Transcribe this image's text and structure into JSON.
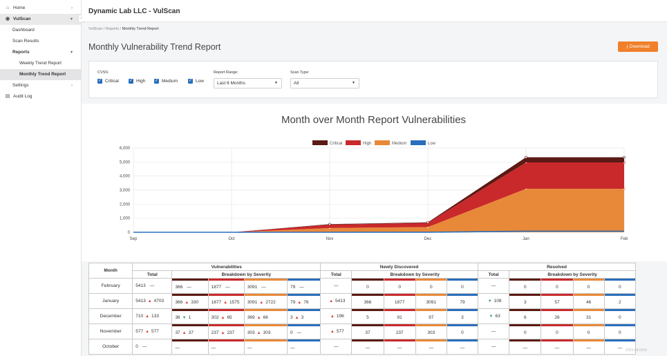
{
  "sidebar": {
    "items": [
      {
        "label": "Home"
      },
      {
        "label": "VulScan"
      },
      {
        "label": "Dashboard"
      },
      {
        "label": "Scan Results"
      },
      {
        "label": "Reports"
      },
      {
        "label": "Weekly Trend Report"
      },
      {
        "label": "Monthly Trend Report"
      },
      {
        "label": "Settings"
      },
      {
        "label": "Audit Log"
      }
    ]
  },
  "header": {
    "title": "Dynamic Lab LLC - VulScan"
  },
  "breadcrumb": {
    "part1": "VulScan",
    "sep1": " / ",
    "part2": "Reports",
    "sep2": " / ",
    "current": "Monthly Trend Report"
  },
  "page": {
    "title": "Monthly Vulnerability Trend Report",
    "download_label": "Download"
  },
  "filters": {
    "cvss_label": "CVSS:",
    "cvss_options": [
      "Critical",
      "High",
      "Medium",
      "Low"
    ],
    "range_label": "Report Range:",
    "range_value": "Last 6 Months",
    "scan_type_label": "Scan Type:",
    "scan_type_value": "All"
  },
  "colors": {
    "critical": "#5b1a14",
    "high": "#c9292b",
    "medium": "#e8893a",
    "low": "#2a6ebb",
    "accent": "#f0802a"
  },
  "chart_data": {
    "type": "area",
    "title": "Month over Month Report Vulnerabilities",
    "categories": [
      "Sep",
      "Oct",
      "Nov",
      "Dec",
      "Jan",
      "Feb"
    ],
    "ylim": [
      0,
      6000
    ],
    "yticks": [
      "0",
      "1,000",
      "2,000",
      "3,000",
      "4,000",
      "5,000",
      "6,000"
    ],
    "stacked": true,
    "legend_position": "top",
    "series": [
      {
        "name": "Critical",
        "values": [
          0,
          0,
          37,
          36,
          366,
          366
        ]
      },
      {
        "name": "High",
        "values": [
          0,
          0,
          237,
          302,
          1877,
          1877
        ]
      },
      {
        "name": "Medium",
        "values": [
          0,
          0,
          303,
          369,
          3091,
          3091
        ]
      },
      {
        "name": "Low",
        "values": [
          0,
          0,
          0,
          3,
          79,
          79
        ]
      }
    ]
  },
  "table": {
    "col_month": "Month",
    "group_vuln": "Vulnerabilities",
    "group_new": "Newly Discovered",
    "group_resolved": "Resolved",
    "sub_total": "Total",
    "sub_breakdown": "Breakdown by Severity",
    "rows": [
      {
        "month": "February",
        "v_total": "5413",
        "v_total_chg": "—",
        "v_c": "366",
        "v_c_chg": "—",
        "v_h": "1877",
        "v_h_chg": "—",
        "v_m": "3091",
        "v_m_chg": "—",
        "v_l": "79",
        "v_l_chg": "—",
        "n_total": "—",
        "n_c": "0",
        "n_h": "0",
        "n_m": "0",
        "n_l": "0",
        "r_total": "—",
        "r_c": "0",
        "r_h": "0",
        "r_m": "0",
        "r_l": "0"
      },
      {
        "month": "January",
        "v_total": "5413",
        "v_total_chg": "4703",
        "v_c": "366",
        "v_c_chg": "330",
        "v_h": "1877",
        "v_h_chg": "1575",
        "v_m": "3091",
        "v_m_chg": "2722",
        "v_l": "79",
        "v_l_chg": "76",
        "n_total": "5413",
        "n_c": "366",
        "n_h": "1877",
        "n_m": "3091",
        "n_l": "79",
        "r_total": "108",
        "r_c": "3",
        "r_h": "57",
        "r_m": "46",
        "r_l": "2"
      },
      {
        "month": "December",
        "v_total": "710",
        "v_total_chg": "133",
        "v_c": "36",
        "v_c_chg": "1",
        "v_h": "302",
        "v_h_chg": "65",
        "v_m": "369",
        "v_m_chg": "66",
        "v_l": "3",
        "v_l_chg": "3",
        "n_total": "196",
        "n_c": "5",
        "n_h": "91",
        "n_m": "97",
        "n_l": "3",
        "r_total": "63",
        "r_c": "6",
        "r_h": "26",
        "r_m": "31",
        "r_l": "0"
      },
      {
        "month": "November",
        "v_total": "577",
        "v_total_chg": "577",
        "v_c": "37",
        "v_c_chg": "37",
        "v_h": "237",
        "v_h_chg": "237",
        "v_m": "303",
        "v_m_chg": "303",
        "v_l": "0",
        "v_l_chg": "—",
        "n_total": "577",
        "n_c": "37",
        "n_h": "237",
        "n_m": "303",
        "n_l": "0",
        "r_total": "—",
        "r_c": "0",
        "r_h": "0",
        "r_m": "0",
        "r_l": "0"
      },
      {
        "month": "October",
        "v_total": "0",
        "v_total_chg": "—",
        "v_c": "—",
        "v_c_chg": "",
        "v_h": "—",
        "v_h_chg": "",
        "v_m": "—",
        "v_m_chg": "",
        "v_l": "—",
        "v_l_chg": "",
        "n_total": "—",
        "n_c": "—",
        "n_h": "—",
        "n_m": "—",
        "n_l": "—",
        "r_total": "—",
        "r_c": "—",
        "r_h": "—",
        "r_m": "—",
        "r_l": "—"
      }
    ]
  },
  "watermark": "2023-08-0003"
}
